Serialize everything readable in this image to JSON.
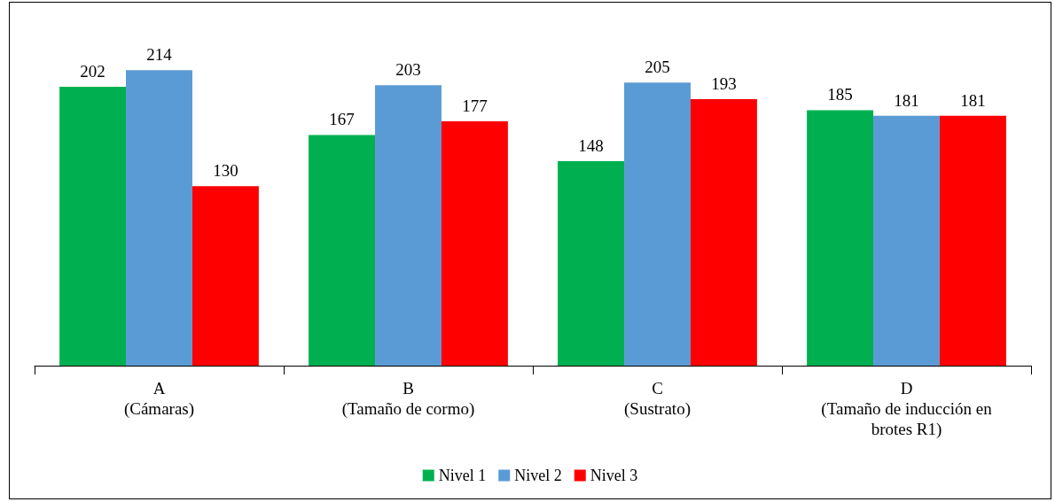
{
  "chart_data": {
    "type": "bar",
    "categories": [
      "A\n(Cámaras)",
      "B\n(Tamaño de cormo)",
      "C\n(Sustrato)",
      "D\n(Tamaño de inducción en\nbrotes R1)"
    ],
    "series": [
      {
        "name": "Nivel 1",
        "color": "#00b050",
        "values": [
          202,
          167,
          148,
          185
        ]
      },
      {
        "name": "Nivel 2",
        "color": "#5b9bd5",
        "values": [
          214,
          203,
          205,
          181
        ]
      },
      {
        "name": "Nivel 3",
        "color": "#ff0000",
        "values": [
          130,
          177,
          193,
          181
        ]
      }
    ],
    "data_labels": true,
    "legend": "bottom"
  }
}
